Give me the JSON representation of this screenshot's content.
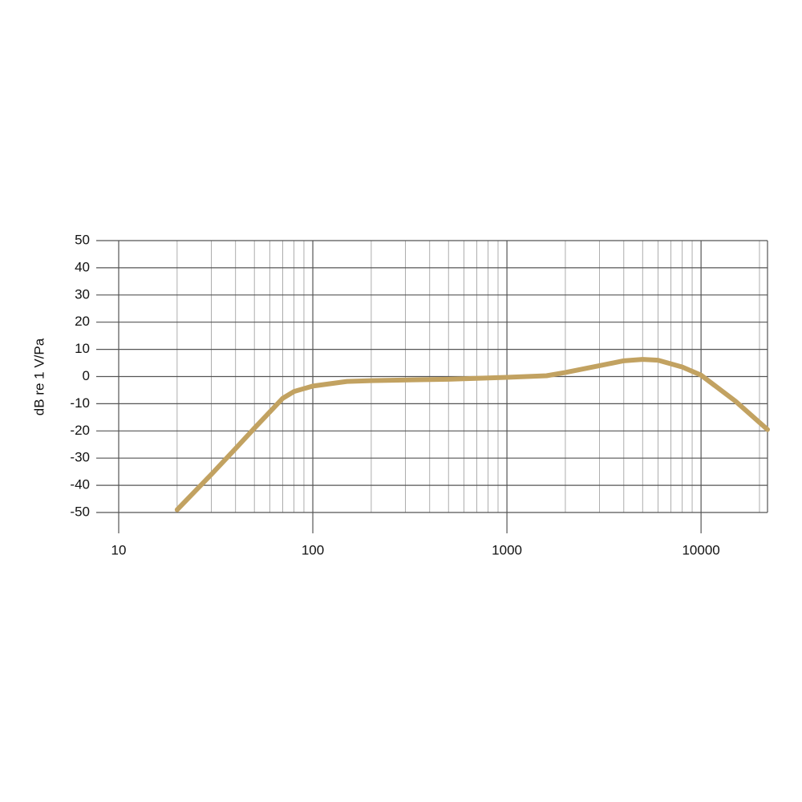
{
  "chart_data": {
    "type": "line",
    "y_label": "dB re 1 V/Pa",
    "x_scale": "log",
    "grid": true,
    "x": [
      20,
      30,
      40,
      50,
      70,
      80,
      100,
      150,
      200,
      500,
      1000,
      1600,
      2000,
      3000,
      4000,
      5000,
      6000,
      8000,
      10000,
      15000,
      22000
    ],
    "series": [
      {
        "color": "#c2a261",
        "values": [
          -49,
          -36,
          -26.5,
          -19,
          -8,
          -5.5,
          -3.5,
          -1.8,
          -1.5,
          -1,
          -0.3,
          0.3,
          1.5,
          4,
          5.8,
          6.3,
          6,
          3.5,
          0.5,
          -9,
          -19.5
        ]
      }
    ],
    "xlim": [
      10,
      22000
    ],
    "xticks": [
      10,
      100,
      1000,
      10000
    ],
    "x_minor_ticks": [
      20,
      30,
      40,
      50,
      60,
      70,
      80,
      90,
      200,
      300,
      400,
      500,
      600,
      700,
      800,
      900,
      2000,
      3000,
      4000,
      5000,
      6000,
      7000,
      8000,
      9000,
      20000
    ],
    "ylim": [
      -50,
      50
    ],
    "yticks": [
      -50,
      -40,
      -30,
      -20,
      -10,
      0,
      10,
      20,
      30,
      40,
      50
    ]
  }
}
